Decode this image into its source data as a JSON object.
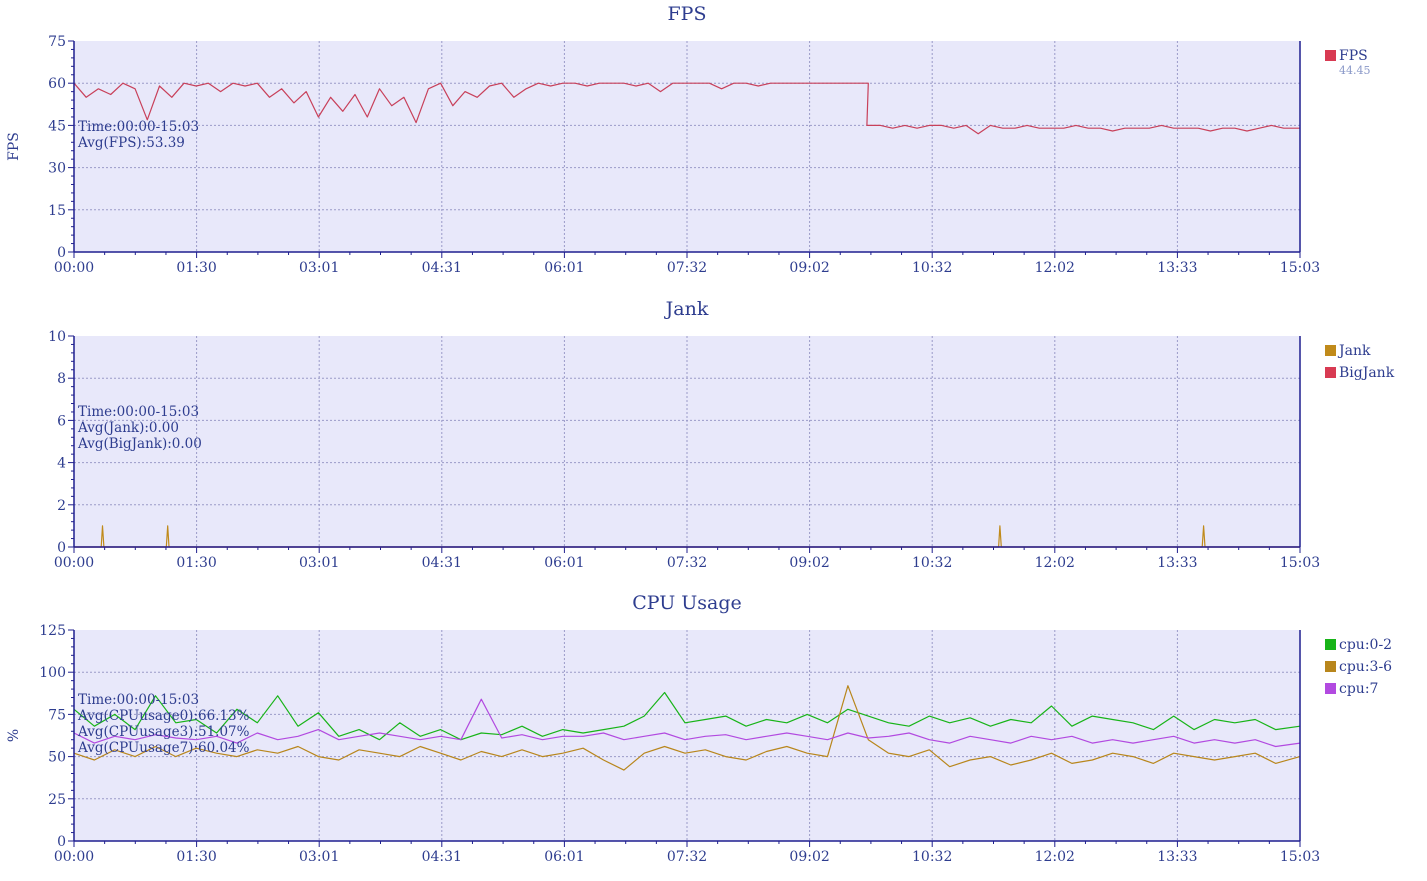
{
  "colors": {
    "axis": "#1f1f8f",
    "text": "#2e3d8f",
    "plot_bg": "#e8e8fa",
    "grid": "#9a9ac8",
    "fps": "#c8405a",
    "jank": "#c08a1a",
    "bigjank": "#d83a52",
    "cpu02": "#18b418",
    "cpu36": "#b8861c",
    "cpu7": "#b24ae0"
  },
  "chart_data": [
    {
      "id": "fps",
      "type": "line",
      "title": "FPS",
      "ylabel": "FPS",
      "ylim": [
        0,
        75
      ],
      "yticks": [
        "0",
        "15",
        "30",
        "45",
        "60",
        "75"
      ],
      "xlim": [
        0,
        903
      ],
      "xticks": [
        "00:00",
        "01:30",
        "03:01",
        "04:31",
        "06:01",
        "07:32",
        "09:02",
        "10:32",
        "12:02",
        "13:33",
        "15:03"
      ],
      "grid": true,
      "legend_position": "right",
      "legend": [
        {
          "name": "FPS",
          "color": "#d83a52",
          "value": "44.45"
        }
      ],
      "annotations": [
        "Time:00:00-15:03",
        "Avg(FPS):53.39"
      ],
      "series": [
        {
          "name": "FPS",
          "color": "#c8405a",
          "x": [
            0,
            9,
            18,
            27,
            36,
            45,
            54,
            63,
            72,
            81,
            90,
            99,
            108,
            117,
            126,
            135,
            144,
            153,
            162,
            171,
            180,
            189,
            198,
            207,
            216,
            225,
            234,
            243,
            252,
            261,
            270,
            279,
            288,
            297,
            306,
            315,
            324,
            333,
            342,
            351,
            360,
            369,
            378,
            387,
            396,
            405,
            414,
            423,
            432,
            441,
            450,
            459,
            468,
            477,
            486,
            495,
            504,
            513,
            522,
            531,
            540,
            549,
            558,
            567,
            576,
            585,
            584,
            585,
            594,
            603,
            612,
            621,
            630,
            639,
            648,
            657,
            666,
            675,
            684,
            693,
            702,
            711,
            720,
            729,
            738,
            747,
            756,
            765,
            774,
            783,
            792,
            801,
            810,
            819,
            828,
            837,
            846,
            855,
            864,
            873,
            882,
            891,
            903
          ],
          "values": [
            60,
            55,
            58,
            56,
            60,
            58,
            47,
            59,
            55,
            60,
            59,
            60,
            57,
            60,
            59,
            60,
            55,
            58,
            53,
            57,
            48,
            55,
            50,
            56,
            48,
            58,
            52,
            55,
            46,
            58,
            60,
            52,
            57,
            55,
            59,
            60,
            55,
            58,
            60,
            59,
            60,
            60,
            59,
            60,
            60,
            60,
            59,
            60,
            57,
            60,
            60,
            60,
            60,
            58,
            60,
            60,
            59,
            60,
            60,
            60,
            60,
            60,
            60,
            60,
            60,
            60,
            45,
            45,
            45,
            44,
            45,
            44,
            45,
            45,
            44,
            45,
            42,
            45,
            44,
            44,
            45,
            44,
            44,
            44,
            45,
            44,
            44,
            43,
            44,
            44,
            44,
            45,
            44,
            44,
            44,
            43,
            44,
            44,
            43,
            44,
            45,
            44,
            44
          ]
        }
      ]
    },
    {
      "id": "jank",
      "type": "line",
      "title": "Jank",
      "ylabel": "",
      "ylim": [
        0,
        10
      ],
      "yticks": [
        "0",
        "2",
        "4",
        "6",
        "8",
        "10"
      ],
      "xlim": [
        0,
        903
      ],
      "xticks": [
        "00:00",
        "01:30",
        "03:01",
        "04:31",
        "06:01",
        "07:32",
        "09:02",
        "10:32",
        "12:02",
        "13:33",
        "15:03"
      ],
      "grid": true,
      "legend_position": "right",
      "legend": [
        {
          "name": "Jank",
          "color": "#c08a1a",
          "value": ""
        },
        {
          "name": "BigJank",
          "color": "#d83a52",
          "value": ""
        }
      ],
      "annotations": [
        "Time:00:00-15:03",
        "Avg(Jank):0.00",
        "Avg(BigJank):0.00"
      ],
      "series": [
        {
          "name": "Jank",
          "color": "#c08a1a",
          "x": [
            0,
            20,
            21,
            22,
            68,
            69,
            70,
            681,
            682,
            683,
            831,
            832,
            833,
            903
          ],
          "values": [
            0,
            0,
            1,
            0,
            0,
            1,
            0,
            0,
            1,
            0,
            0,
            1,
            0,
            0
          ]
        },
        {
          "name": "BigJank",
          "color": "#d83a52",
          "x": [
            0,
            903
          ],
          "values": [
            0,
            0
          ]
        }
      ]
    },
    {
      "id": "cpu",
      "type": "line",
      "title": "CPU Usage",
      "ylabel": "%",
      "ylim": [
        0,
        125
      ],
      "yticks": [
        "0",
        "25",
        "50",
        "75",
        "100",
        "125"
      ],
      "xlim": [
        0,
        903
      ],
      "xticks": [
        "00:00",
        "01:30",
        "03:01",
        "04:31",
        "06:01",
        "07:32",
        "09:02",
        "10:32",
        "12:02",
        "13:33",
        "15:03"
      ],
      "grid": true,
      "legend_position": "right",
      "legend": [
        {
          "name": "cpu:0-2",
          "color": "#18b418",
          "value": ""
        },
        {
          "name": "cpu:3-6",
          "color": "#b8861c",
          "value": ""
        },
        {
          "name": "cpu:7",
          "color": "#b24ae0",
          "value": ""
        }
      ],
      "annotations": [
        "Time:00:00-15:03",
        "Avg(CPUusage0):66.13%",
        "Avg(CPUusage3):51.07%",
        "Avg(CPUusage7):60.04%"
      ],
      "series": [
        {
          "name": "cpu:0-2",
          "color": "#18b418",
          "x": [
            0,
            15,
            30,
            45,
            60,
            75,
            90,
            105,
            120,
            135,
            150,
            165,
            180,
            195,
            210,
            225,
            240,
            255,
            270,
            285,
            300,
            315,
            330,
            345,
            360,
            375,
            390,
            405,
            420,
            435,
            450,
            465,
            480,
            495,
            510,
            525,
            540,
            555,
            570,
            585,
            600,
            615,
            630,
            645,
            660,
            675,
            690,
            705,
            720,
            735,
            750,
            765,
            780,
            795,
            810,
            825,
            840,
            855,
            870,
            885,
            903
          ],
          "values": [
            78,
            68,
            75,
            66,
            86,
            70,
            72,
            64,
            78,
            70,
            86,
            68,
            76,
            62,
            66,
            60,
            70,
            62,
            66,
            60,
            64,
            63,
            68,
            62,
            66,
            64,
            66,
            68,
            74,
            88,
            70,
            72,
            74,
            68,
            72,
            70,
            75,
            70,
            78,
            74,
            70,
            68,
            74,
            70,
            73,
            68,
            72,
            70,
            80,
            68,
            74,
            72,
            70,
            66,
            74,
            66,
            72,
            70,
            72,
            66,
            68
          ]
        },
        {
          "name": "cpu:3-6",
          "color": "#b8861c",
          "x": [
            0,
            15,
            30,
            45,
            60,
            75,
            90,
            105,
            120,
            135,
            150,
            165,
            180,
            195,
            210,
            225,
            240,
            255,
            270,
            285,
            300,
            315,
            330,
            345,
            360,
            375,
            390,
            405,
            420,
            435,
            450,
            465,
            480,
            495,
            510,
            525,
            540,
            555,
            570,
            585,
            600,
            615,
            630,
            645,
            660,
            675,
            690,
            705,
            720,
            735,
            750,
            765,
            780,
            795,
            810,
            825,
            840,
            855,
            870,
            885,
            903
          ],
          "values": [
            52,
            48,
            54,
            50,
            56,
            50,
            55,
            52,
            50,
            54,
            52,
            56,
            50,
            48,
            54,
            52,
            50,
            56,
            52,
            48,
            53,
            50,
            54,
            50,
            52,
            55,
            48,
            42,
            52,
            56,
            52,
            54,
            50,
            48,
            53,
            56,
            52,
            50,
            92,
            60,
            52,
            50,
            54,
            44,
            48,
            50,
            45,
            48,
            52,
            46,
            48,
            52,
            50,
            46,
            52,
            50,
            48,
            50,
            52,
            46,
            50
          ]
        },
        {
          "name": "cpu:7",
          "color": "#b24ae0",
          "x": [
            0,
            15,
            30,
            45,
            60,
            75,
            90,
            105,
            120,
            135,
            150,
            165,
            180,
            195,
            210,
            225,
            240,
            255,
            270,
            285,
            300,
            315,
            330,
            345,
            360,
            375,
            390,
            405,
            420,
            435,
            450,
            465,
            480,
            495,
            510,
            525,
            540,
            555,
            570,
            585,
            600,
            615,
            630,
            645,
            660,
            675,
            690,
            705,
            720,
            735,
            750,
            765,
            780,
            795,
            810,
            825,
            840,
            855,
            870,
            885,
            903
          ],
          "values": [
            64,
            58,
            62,
            60,
            63,
            61,
            60,
            62,
            58,
            64,
            60,
            62,
            66,
            60,
            62,
            64,
            62,
            60,
            62,
            60,
            84,
            61,
            63,
            60,
            62,
            62,
            64,
            60,
            62,
            64,
            60,
            62,
            63,
            60,
            62,
            64,
            62,
            60,
            64,
            61,
            62,
            64,
            60,
            58,
            62,
            60,
            58,
            62,
            60,
            62,
            58,
            60,
            58,
            60,
            62,
            58,
            60,
            58,
            60,
            56,
            58
          ]
        }
      ]
    }
  ]
}
